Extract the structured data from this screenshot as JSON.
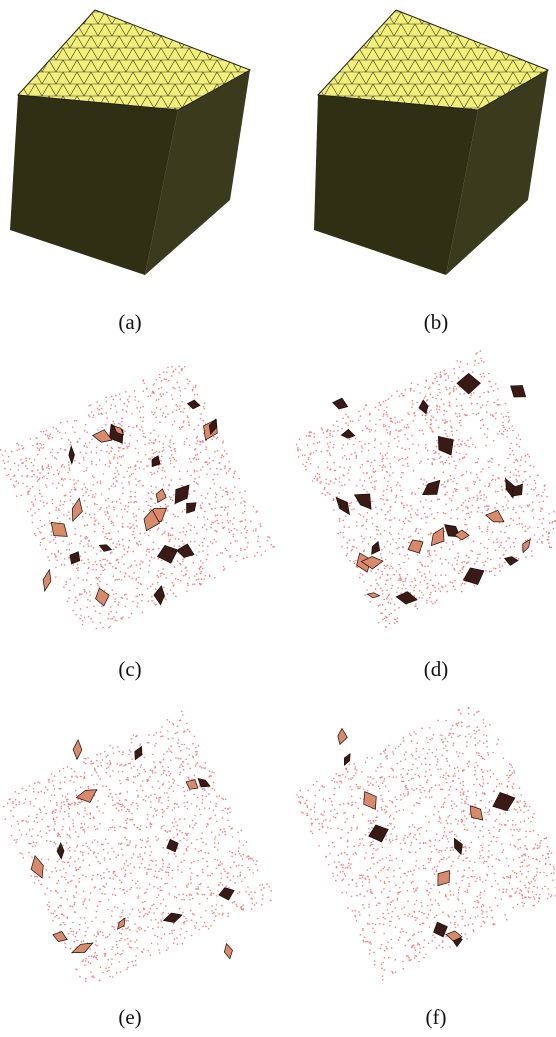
{
  "figure": {
    "panels": [
      {
        "id": "a",
        "caption": "(a)",
        "kind": "meshed-cube"
      },
      {
        "id": "b",
        "caption": "(b)",
        "kind": "meshed-cube"
      },
      {
        "id": "c",
        "caption": "(c)",
        "kind": "point-cloud-with-slivers"
      },
      {
        "id": "d",
        "caption": "(d)",
        "kind": "point-cloud-with-slivers"
      },
      {
        "id": "e",
        "caption": "(e)",
        "kind": "point-cloud-with-slivers"
      },
      {
        "id": "f",
        "caption": "(f)",
        "kind": "point-cloud-with-slivers"
      }
    ],
    "colors": {
      "cube_top": "#f2f07a",
      "cube_side": "#2f2f14",
      "cube_edge": "#3a3a20",
      "points": "#f08080",
      "sliver_light": "#d98a6a",
      "sliver_dark": "#3a1a14"
    }
  }
}
